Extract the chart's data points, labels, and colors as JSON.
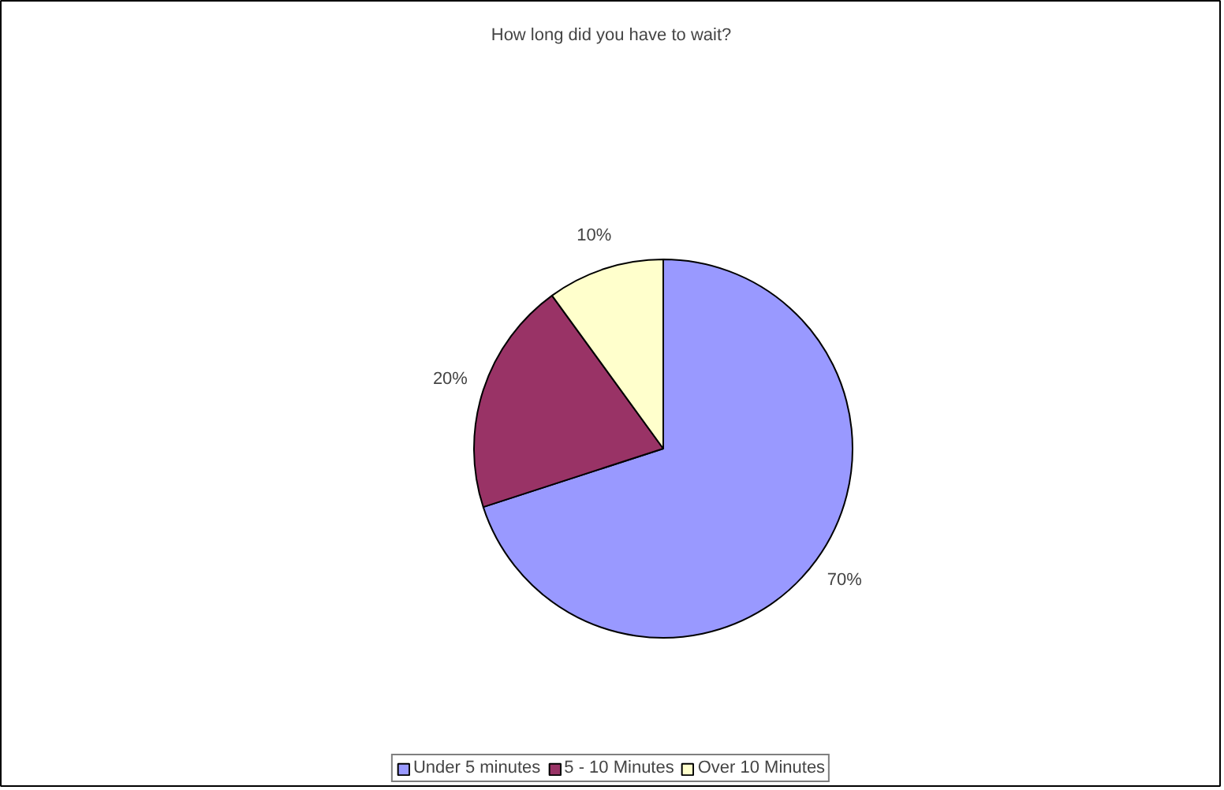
{
  "chart_data": {
    "type": "pie",
    "title": "How long did you have to wait?",
    "categories": [
      "Under 5 minutes",
      "5 - 10 Minutes",
      "Over 10 Minutes"
    ],
    "values": [
      70,
      20,
      10
    ],
    "colors": [
      "#9999ff",
      "#993366",
      "#ffffcc"
    ],
    "value_labels": [
      "70%",
      "20%",
      "10%"
    ],
    "legend": "bottom"
  }
}
